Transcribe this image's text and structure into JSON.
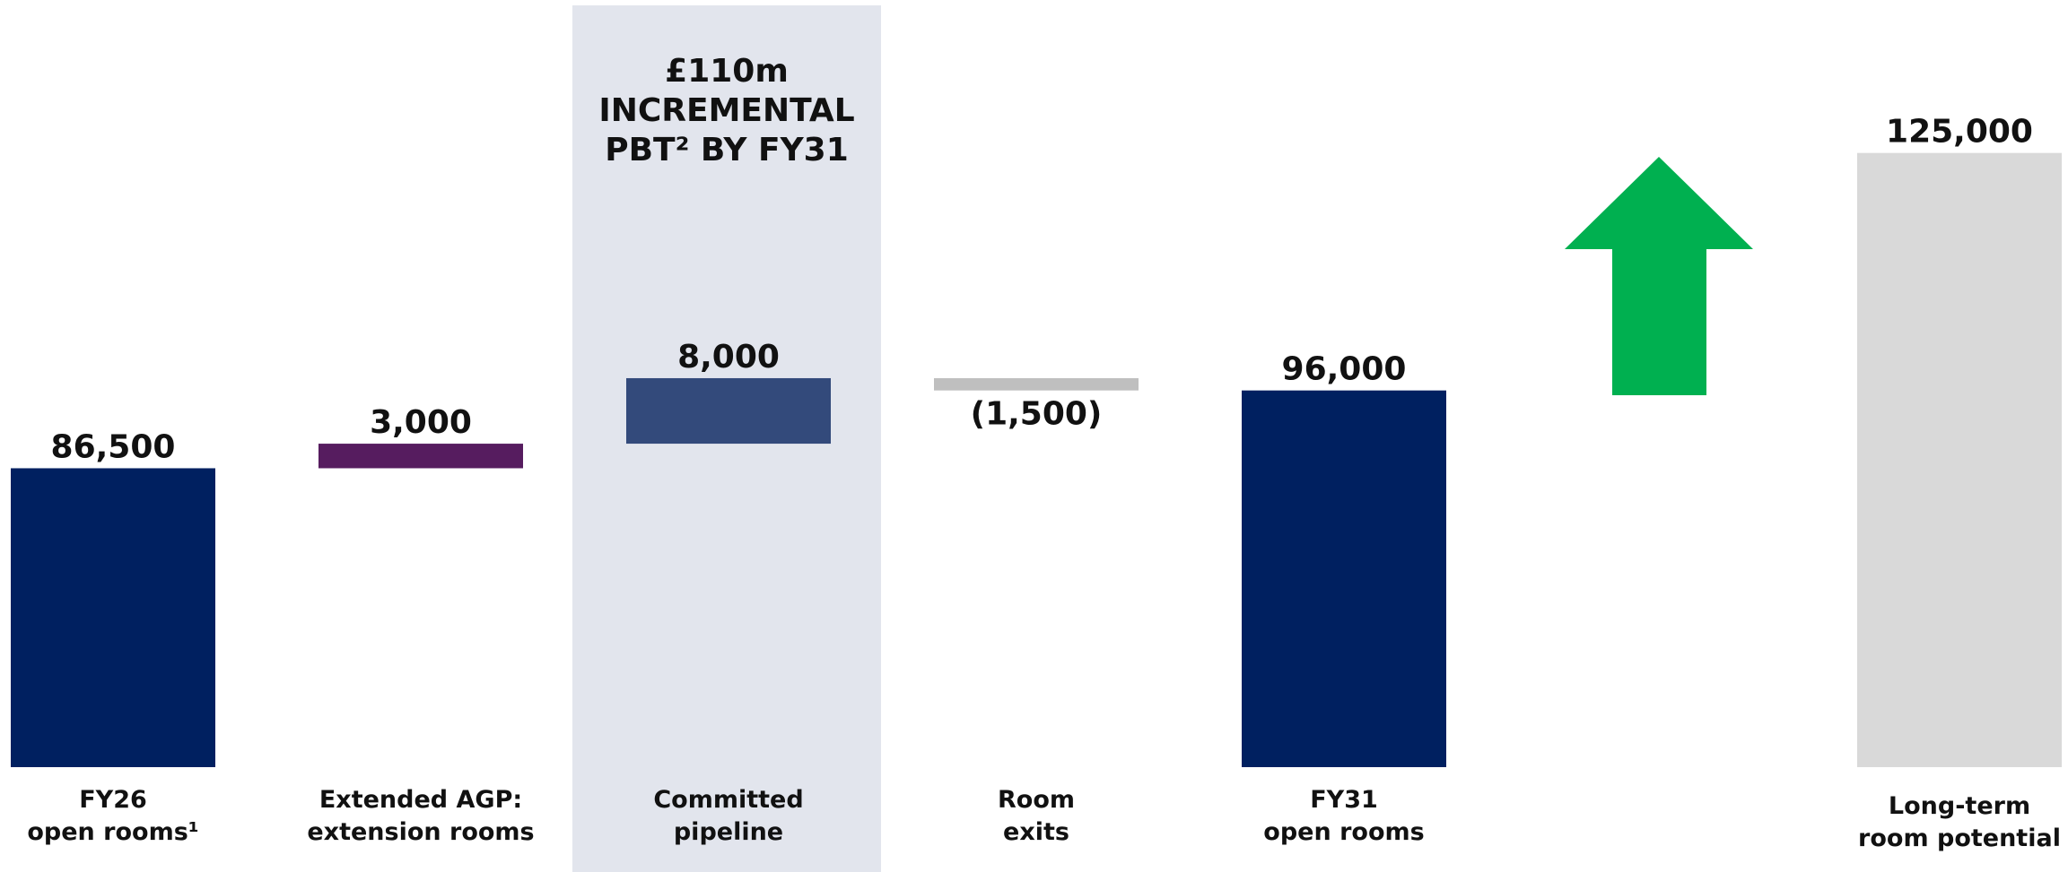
{
  "chart_data": {
    "type": "waterfall",
    "annotation": "£110m\nINCREMENTAL\nPBT² BY FY31",
    "categories": [
      "FY26\nopen rooms¹",
      "Extended AGP:\nextension rooms",
      "Committed\npipeline",
      "Room\nexits",
      "FY31\nopen rooms",
      "Long-term\nroom potential"
    ],
    "values": [
      86500,
      3000,
      8000,
      -1500,
      96000,
      125000
    ],
    "value_labels": [
      "86,500",
      "3,000",
      "8,000",
      "(1,500)",
      "96,000",
      "125,000"
    ],
    "bar_kinds": [
      "total",
      "delta",
      "delta",
      "delta",
      "total",
      "total"
    ],
    "colors": [
      "#002060",
      "#561c5f",
      "#334a7b",
      "#bfbfbf",
      "#002060",
      "#d9d9d9"
    ],
    "highlight_color": "#e2e5ed",
    "ylim": [
      50000,
      130000
    ]
  }
}
